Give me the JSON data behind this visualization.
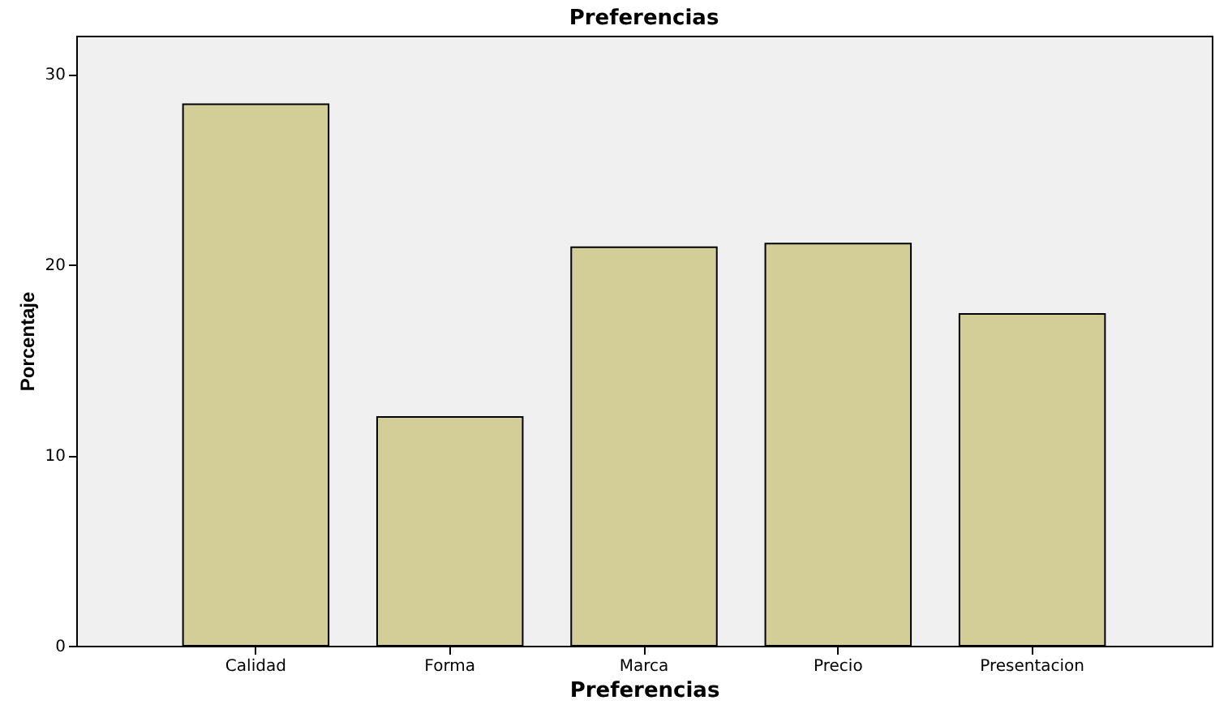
{
  "chart_data": {
    "type": "bar",
    "title": "Preferencias",
    "xlabel": "Preferencias",
    "ylabel": "Porcentaje",
    "categories": [
      "Calidad",
      "Forma",
      "Marca",
      "Precio",
      "Presentacion"
    ],
    "values": [
      28.4,
      12.0,
      20.9,
      21.1,
      17.4
    ],
    "color": "#d3ce97",
    "ylim": [
      0,
      32
    ],
    "yticks": [
      0,
      10,
      20,
      30
    ],
    "grid": false
  }
}
